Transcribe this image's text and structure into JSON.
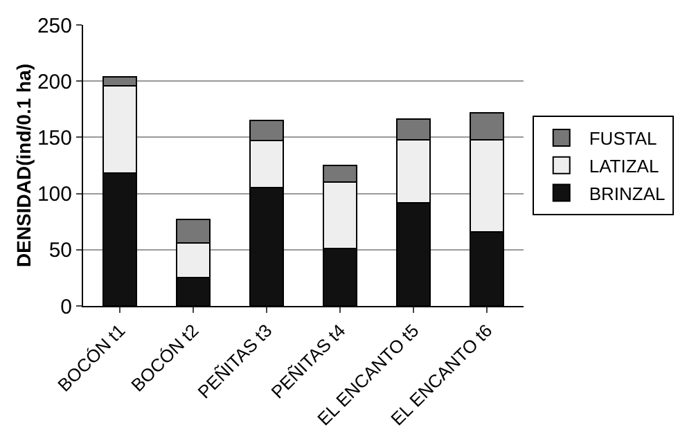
{
  "chart_data": {
    "type": "bar",
    "stacked": true,
    "ylabel": "DENSIDAD(ind/0.1 ha)",
    "categories": [
      "BOCÓN t1",
      "BOCÓN t2",
      "PEÑITAS t3",
      "PEÑITAS t4",
      "EL ENCANTO t5",
      "EL ENCANTO t6"
    ],
    "series": [
      {
        "name": "BRINZAL",
        "color": "#111111",
        "values": [
          118,
          25,
          105,
          51,
          92,
          66
        ]
      },
      {
        "name": "LATIZAL",
        "color": "#eeeeee",
        "values": [
          78,
          31,
          42,
          59,
          56,
          82
        ]
      },
      {
        "name": "FUSTAL",
        "color": "#777777",
        "values": [
          8,
          21,
          18,
          15,
          18,
          24
        ]
      }
    ],
    "ylim": [
      0,
      250
    ],
    "yticks": [
      0,
      50,
      100,
      150,
      200,
      250
    ],
    "grid": "y",
    "legend": "right"
  }
}
